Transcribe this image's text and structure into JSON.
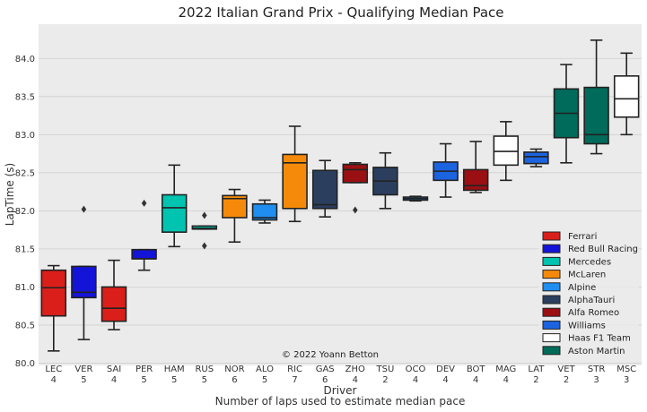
{
  "chart_data": {
    "type": "box",
    "title": "2022 Italian Grand Prix - Qualifying Median Pace",
    "xlabel": "Driver",
    "xlabel2": "Number of laps used to estimate median pace",
    "ylabel": "LapTime (s)",
    "ylim": [
      79.97,
      84.45
    ],
    "yticks": [
      "80.0",
      "80.5",
      "81.0",
      "81.5",
      "82.0",
      "82.5",
      "83.0",
      "83.5",
      "84.0"
    ],
    "ytick_values": [
      80.0,
      80.5,
      81.0,
      81.5,
      82.0,
      82.5,
      83.0,
      83.5,
      84.0
    ],
    "grid": true,
    "legend_position": "bottom-right",
    "annotation": "© 2022 Yoann Betton",
    "teams": [
      {
        "name": "Ferrari",
        "color": "#da1f1b"
      },
      {
        "name": "Red Bull Racing",
        "color": "#1414d9"
      },
      {
        "name": "Mercedes",
        "color": "#00c4b0"
      },
      {
        "name": "McLaren",
        "color": "#f58a0a"
      },
      {
        "name": "Alpine",
        "color": "#1f8ef0"
      },
      {
        "name": "AlphaTauri",
        "color": "#2b3e5e"
      },
      {
        "name": "Alfa Romeo",
        "color": "#9a0f12"
      },
      {
        "name": "Williams",
        "color": "#1c63e0"
      },
      {
        "name": "Haas F1 Team",
        "color": "#ffffff"
      },
      {
        "name": "Aston Martin",
        "color": "#006b5a"
      }
    ],
    "drivers": [
      {
        "driver": "LEC",
        "laps": "4",
        "team": "Ferrari",
        "q1": 80.62,
        "median": 80.99,
        "q3": 81.22,
        "whislo": 80.16,
        "whishi": 81.28,
        "fliers": []
      },
      {
        "driver": "VER",
        "laps": "5",
        "team": "Red Bull Racing",
        "q1": 80.86,
        "median": 80.93,
        "q3": 81.27,
        "whislo": 80.31,
        "whishi": 81.27,
        "fliers": [
          82.02
        ]
      },
      {
        "driver": "SAI",
        "laps": "4",
        "team": "Ferrari",
        "q1": 80.55,
        "median": 80.72,
        "q3": 81.0,
        "whislo": 80.44,
        "whishi": 81.35,
        "fliers": []
      },
      {
        "driver": "PER",
        "laps": "5",
        "team": "Red Bull Racing",
        "q1": 81.37,
        "median": 81.37,
        "q3": 81.49,
        "whislo": 81.22,
        "whishi": 81.49,
        "fliers": [
          82.1
        ]
      },
      {
        "driver": "HAM",
        "laps": "5",
        "team": "Mercedes",
        "q1": 81.72,
        "median": 82.04,
        "q3": 82.21,
        "whislo": 81.53,
        "whishi": 82.6,
        "fliers": []
      },
      {
        "driver": "RUS",
        "laps": "5",
        "team": "Mercedes",
        "q1": 81.76,
        "median": 81.77,
        "q3": 81.8,
        "whislo": 81.76,
        "whishi": 81.8,
        "fliers": [
          81.94,
          81.54
        ]
      },
      {
        "driver": "NOR",
        "laps": "6",
        "team": "McLaren",
        "q1": 81.91,
        "median": 82.16,
        "q3": 82.2,
        "whislo": 81.59,
        "whishi": 82.28,
        "fliers": []
      },
      {
        "driver": "ALO",
        "laps": "5",
        "team": "Alpine",
        "q1": 81.88,
        "median": 81.91,
        "q3": 82.09,
        "whislo": 81.84,
        "whishi": 82.14,
        "fliers": []
      },
      {
        "driver": "RIC",
        "laps": "7",
        "team": "McLaren",
        "q1": 82.03,
        "median": 82.63,
        "q3": 82.74,
        "whislo": 81.86,
        "whishi": 83.11,
        "fliers": []
      },
      {
        "driver": "GAS",
        "laps": "6",
        "team": "AlphaTauri",
        "q1": 82.03,
        "median": 82.08,
        "q3": 82.53,
        "whislo": 81.92,
        "whishi": 82.66,
        "fliers": []
      },
      {
        "driver": "ZHO",
        "laps": "4",
        "team": "Alfa Romeo",
        "q1": 82.37,
        "median": 82.54,
        "q3": 82.61,
        "whislo": 82.37,
        "whishi": 82.63,
        "fliers": [
          82.01
        ]
      },
      {
        "driver": "TSU",
        "laps": "2",
        "team": "AlphaTauri",
        "q1": 82.21,
        "median": 82.39,
        "q3": 82.57,
        "whislo": 82.03,
        "whishi": 82.76,
        "fliers": []
      },
      {
        "driver": "OCO",
        "laps": "4",
        "team": "Alpine",
        "q1": 82.14,
        "median": 82.16,
        "q3": 82.18,
        "whislo": 82.13,
        "whishi": 82.19,
        "fliers": []
      },
      {
        "driver": "DEV",
        "laps": "4",
        "team": "Williams",
        "q1": 82.4,
        "median": 82.52,
        "q3": 82.64,
        "whislo": 82.18,
        "whishi": 82.88,
        "fliers": []
      },
      {
        "driver": "BOT",
        "laps": "4",
        "team": "Alfa Romeo",
        "q1": 82.27,
        "median": 82.33,
        "q3": 82.54,
        "whislo": 82.24,
        "whishi": 82.91,
        "fliers": []
      },
      {
        "driver": "MAG",
        "laps": "4",
        "team": "Haas F1 Team",
        "q1": 82.6,
        "median": 82.78,
        "q3": 82.98,
        "whislo": 82.4,
        "whishi": 83.17,
        "fliers": []
      },
      {
        "driver": "LAT",
        "laps": "2",
        "team": "Williams",
        "q1": 82.62,
        "median": 82.71,
        "q3": 82.77,
        "whislo": 82.58,
        "whishi": 82.81,
        "fliers": []
      },
      {
        "driver": "VET",
        "laps": "2",
        "team": "Aston Martin",
        "q1": 82.96,
        "median": 83.28,
        "q3": 83.6,
        "whislo": 82.63,
        "whishi": 83.92,
        "fliers": []
      },
      {
        "driver": "STR",
        "laps": "3",
        "team": "Aston Martin",
        "q1": 82.88,
        "median": 83.0,
        "q3": 83.62,
        "whislo": 82.75,
        "whishi": 84.24,
        "fliers": []
      },
      {
        "driver": "MSC",
        "laps": "3",
        "team": "Haas F1 Team",
        "q1": 83.23,
        "median": 83.47,
        "q3": 83.77,
        "whislo": 83.0,
        "whishi": 84.07,
        "fliers": []
      }
    ]
  }
}
